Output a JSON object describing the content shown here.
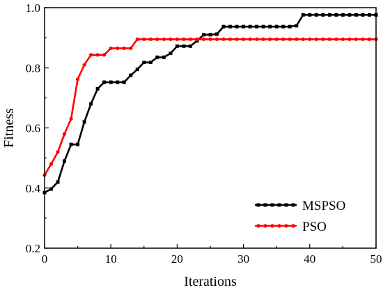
{
  "chart_data": {
    "type": "line",
    "title": "",
    "xlabel": "Iterations",
    "ylabel": "Fitness",
    "xlim": [
      0,
      50
    ],
    "ylim": [
      0.2,
      1.0
    ],
    "xticks": [
      0,
      10,
      20,
      30,
      40,
      50
    ],
    "yticks": [
      0.2,
      0.4,
      0.6,
      0.8,
      1.0
    ],
    "xtick_labels": [
      "0",
      "10",
      "20",
      "30",
      "40",
      "50"
    ],
    "ytick_labels": [
      "0.2",
      "0.4",
      "0.6",
      "0.8",
      "1.0"
    ],
    "grid": false,
    "legend_position": "bottom-right",
    "x": [
      0,
      1,
      2,
      3,
      4,
      5,
      6,
      7,
      8,
      9,
      10,
      11,
      12,
      13,
      14,
      15,
      16,
      17,
      18,
      19,
      20,
      21,
      22,
      23,
      24,
      25,
      26,
      27,
      28,
      29,
      30,
      31,
      32,
      33,
      34,
      35,
      36,
      37,
      38,
      39,
      40,
      41,
      42,
      43,
      44,
      45,
      46,
      47,
      48,
      49,
      50
    ],
    "series": [
      {
        "name": "MSPSO",
        "color": "#000000",
        "marker": "square",
        "values": [
          0.385,
          0.397,
          0.42,
          0.49,
          0.545,
          0.545,
          0.62,
          0.68,
          0.73,
          0.752,
          0.752,
          0.752,
          0.752,
          0.775,
          0.795,
          0.818,
          0.818,
          0.835,
          0.835,
          0.848,
          0.872,
          0.872,
          0.872,
          0.89,
          0.91,
          0.91,
          0.912,
          0.937,
          0.937,
          0.937,
          0.937,
          0.937,
          0.937,
          0.937,
          0.937,
          0.937,
          0.937,
          0.937,
          0.94,
          0.976,
          0.976,
          0.976,
          0.976,
          0.976,
          0.976,
          0.976,
          0.976,
          0.976,
          0.976,
          0.976,
          0.976
        ]
      },
      {
        "name": "PSO",
        "color": "#ff0000",
        "marker": "circle",
        "values": [
          0.443,
          0.48,
          0.52,
          0.58,
          0.63,
          0.762,
          0.81,
          0.843,
          0.843,
          0.843,
          0.865,
          0.865,
          0.865,
          0.865,
          0.895,
          0.895,
          0.895,
          0.895,
          0.895,
          0.895,
          0.895,
          0.895,
          0.895,
          0.895,
          0.895,
          0.895,
          0.895,
          0.895,
          0.895,
          0.895,
          0.895,
          0.895,
          0.895,
          0.895,
          0.895,
          0.895,
          0.895,
          0.895,
          0.895,
          0.895,
          0.895,
          0.895,
          0.895,
          0.895,
          0.895,
          0.895,
          0.895,
          0.895,
          0.895,
          0.895,
          0.895
        ]
      }
    ]
  }
}
